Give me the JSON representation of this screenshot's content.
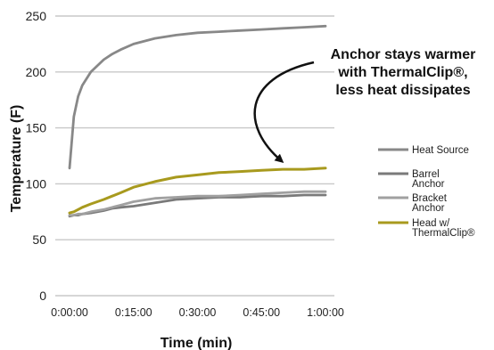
{
  "chart_data": {
    "type": "line",
    "xlabel": "Time (min)",
    "ylabel": "Temperature (F)",
    "ylim": [
      0,
      250
    ],
    "yticks": [
      "0",
      "50",
      "100",
      "150",
      "200",
      "250"
    ],
    "xlim": [
      0,
      60
    ],
    "xticks": [
      "0:00:00",
      "0:15:00",
      "0:30:00",
      "0:45:00",
      "1:00:00"
    ],
    "grid": "horizontal",
    "legend_position": "right",
    "x": [
      0,
      1,
      2,
      3,
      5,
      8,
      10,
      12,
      15,
      20,
      25,
      30,
      35,
      40,
      45,
      50,
      55,
      60
    ],
    "series": [
      {
        "name": "Heat Source",
        "color": "#888888",
        "values": [
          114,
          160,
          178,
          188,
          200,
          211,
          216,
          220,
          225,
          230,
          233,
          235,
          236,
          237,
          238,
          239,
          240,
          241
        ]
      },
      {
        "name": "Barrel Anchor",
        "color": "#7a7a7a",
        "values": [
          71,
          72,
          72,
          73,
          74,
          76,
          78,
          79,
          80,
          83,
          86,
          87,
          88,
          88,
          89,
          89,
          90,
          90
        ]
      },
      {
        "name": "Bracket Anchor",
        "color": "#a0a0a0",
        "values": [
          72,
          72,
          73,
          73,
          75,
          77,
          79,
          81,
          84,
          87,
          88,
          89,
          89,
          90,
          91,
          92,
          93,
          93
        ]
      },
      {
        "name": "Head w/ ThermalClip®",
        "color": "#a89a1e",
        "values": [
          74,
          75,
          77,
          79,
          82,
          86,
          89,
          92,
          97,
          102,
          106,
          108,
          110,
          111,
          112,
          113,
          113,
          114
        ]
      }
    ],
    "legend": [
      {
        "line1": "Heat Source",
        "line2": "",
        "color": "#888888"
      },
      {
        "line1": "Barrel",
        "line2": "Anchor",
        "color": "#7a7a7a"
      },
      {
        "line1": "Bracket",
        "line2": "Anchor",
        "color": "#a0a0a0"
      },
      {
        "line1": "Head w/",
        "line2": "ThermalClip®",
        "color": "#a89a1e"
      }
    ],
    "annotation": {
      "lines": [
        "Anchor stays warmer",
        "with ThermalClip®,",
        "less heat dissipates"
      ]
    }
  }
}
